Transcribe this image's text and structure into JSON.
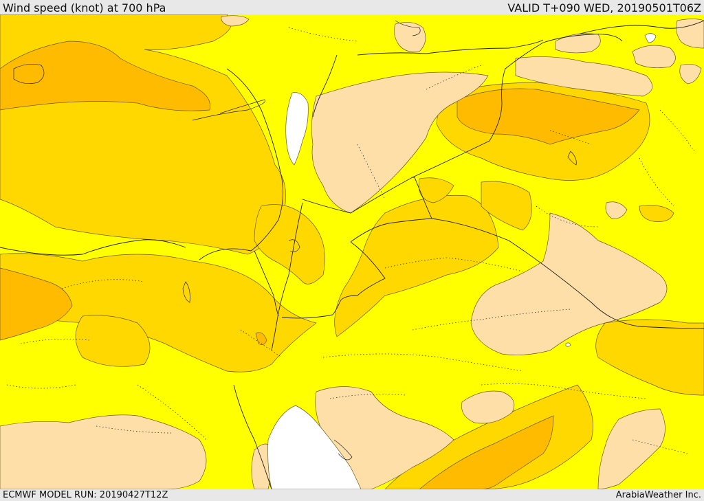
{
  "header": {
    "title": "Wind speed (knot) at 700 hPa",
    "valid": "VALID T+090 WED, 20190501T06Z"
  },
  "footer": {
    "model_run": "ECMWF MODEL RUN: 20190427T12Z",
    "credit": "ArabiaWeather Inc."
  },
  "legend_colors": {
    "lowest": "#ffffff",
    "low": "#ffdfa8",
    "base": "#ffff00",
    "mid": "#ffd800",
    "high": "#ffbb00",
    "highest": "#f0a000"
  },
  "map": {
    "region": "Middle East (Eastern Mediterranean, Levant, Iraq, Arabian Peninsula, Red Sea)",
    "features": [
      "wind-speed-contours",
      "country-borders",
      "coastlines",
      "admin-boundaries"
    ]
  }
}
